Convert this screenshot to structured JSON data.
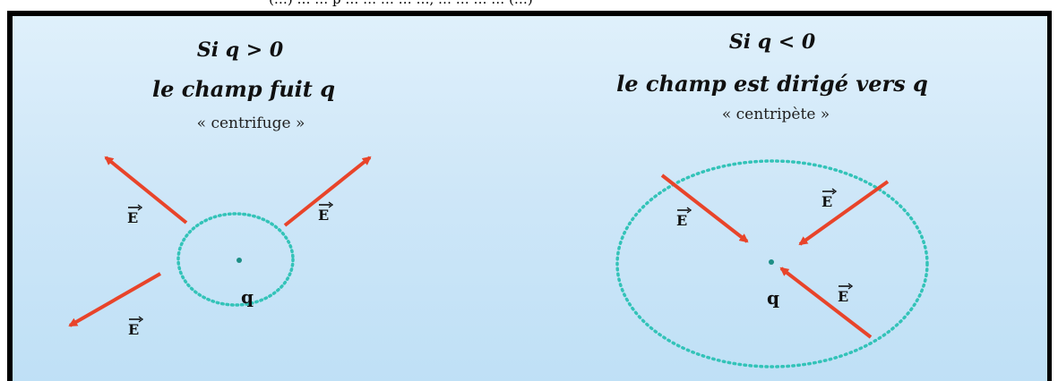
{
  "top_clipped_text": "(…) …  … p … … … … …, … … … … (…)",
  "left": {
    "title_line1": "Si q > 0",
    "title_line2": "le champ  fuit q",
    "subtitle": "« centrifuge »",
    "charge_label": "q",
    "field_label": "E"
  },
  "right": {
    "title_line1": "Si q < 0",
    "title_line2": "le champ  est dirigé vers q",
    "subtitle": "« centripète »",
    "charge_label": "q",
    "field_label": "E"
  },
  "colors": {
    "arrow": "#e8442a",
    "dotted_circle": "#33c3b8",
    "charge_dot": "#1d8f86"
  }
}
